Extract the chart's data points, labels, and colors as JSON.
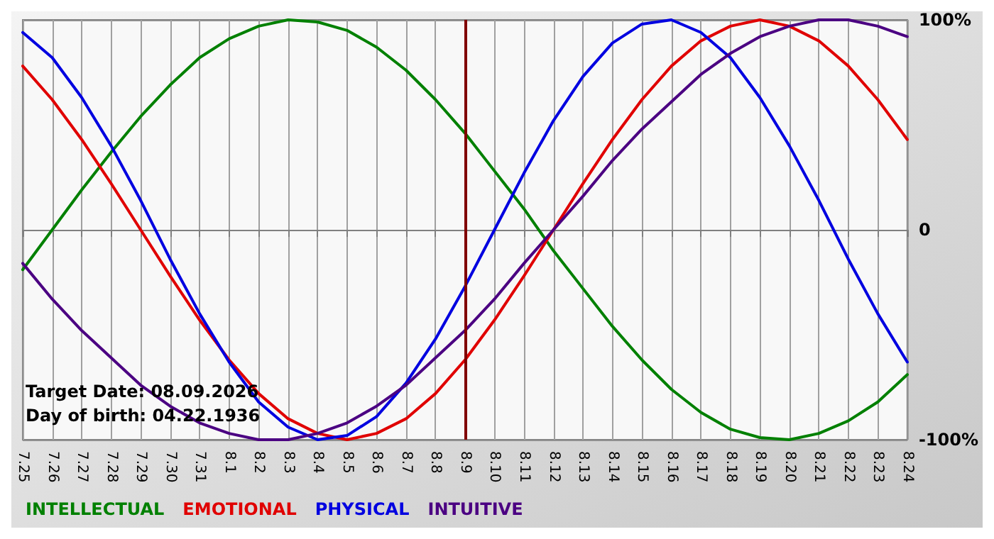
{
  "chart_data": {
    "type": "line",
    "categories": [
      "7.25",
      "7.26",
      "7.27",
      "7.28",
      "7.29",
      "7.30",
      "7.31",
      "8.1",
      "8.2",
      "8.3",
      "8.4",
      "8.5",
      "8.6",
      "8.7",
      "8.8",
      "8.9",
      "8.10",
      "8.11",
      "8.12",
      "8.13",
      "8.14",
      "8.15",
      "8.16",
      "8.17",
      "8.18",
      "8.19",
      "8.20",
      "8.21",
      "8.22",
      "8.23",
      "8.24"
    ],
    "series": [
      {
        "name": "INTELLECTUAL",
        "color": "#008000",
        "values": [
          -19,
          0,
          19,
          37,
          54,
          69,
          82,
          91,
          97,
          100,
          99,
          95,
          87,
          76,
          62,
          46,
          28,
          10,
          -10,
          -28,
          -46,
          -62,
          -76,
          -87,
          -95,
          -99,
          -100,
          -97,
          -91,
          -82,
          -69
        ]
      },
      {
        "name": "EMOTIONAL",
        "color": "#e00000",
        "values": [
          78,
          62,
          43,
          22,
          0,
          -22,
          -43,
          -62,
          -78,
          -90,
          -97,
          -100,
          -97,
          -90,
          -78,
          -62,
          -43,
          -22,
          0,
          22,
          43,
          62,
          78,
          90,
          97,
          100,
          97,
          90,
          78,
          62,
          43
        ]
      },
      {
        "name": "PHYSICAL",
        "color": "#0000e0",
        "values": [
          94,
          82,
          63,
          40,
          14,
          -14,
          -40,
          -63,
          -82,
          -94,
          -100,
          -98,
          -89,
          -73,
          -52,
          -27,
          0,
          27,
          52,
          73,
          89,
          98,
          100,
          94,
          82,
          63,
          40,
          14,
          -14,
          -40,
          -63
        ]
      },
      {
        "name": "INTUITIVE",
        "color": "#4b0082",
        "values": [
          -16,
          -33,
          -48,
          -61,
          -74,
          -84,
          -92,
          -97,
          -100,
          -100,
          -97,
          -92,
          -84,
          -74,
          -61,
          -48,
          -33,
          -16,
          0,
          16,
          33,
          48,
          61,
          74,
          84,
          92,
          97,
          100,
          100,
          97,
          92
        ]
      }
    ],
    "ylim": [
      -100,
      100
    ],
    "yticks": [
      {
        "value": -100,
        "label": "-100%"
      },
      0,
      {
        "value": 100,
        "label": "100%"
      }
    ],
    "ref_lines": [
      {
        "axis": "x",
        "value": "8.9",
        "color": "#800000"
      }
    ],
    "annotations": [
      "Target Date: 08.09.2026",
      "Day of birth: 04.22.1936"
    ],
    "grid": true,
    "legend": "bottom left",
    "marker": "none",
    "line_style": "solid"
  }
}
